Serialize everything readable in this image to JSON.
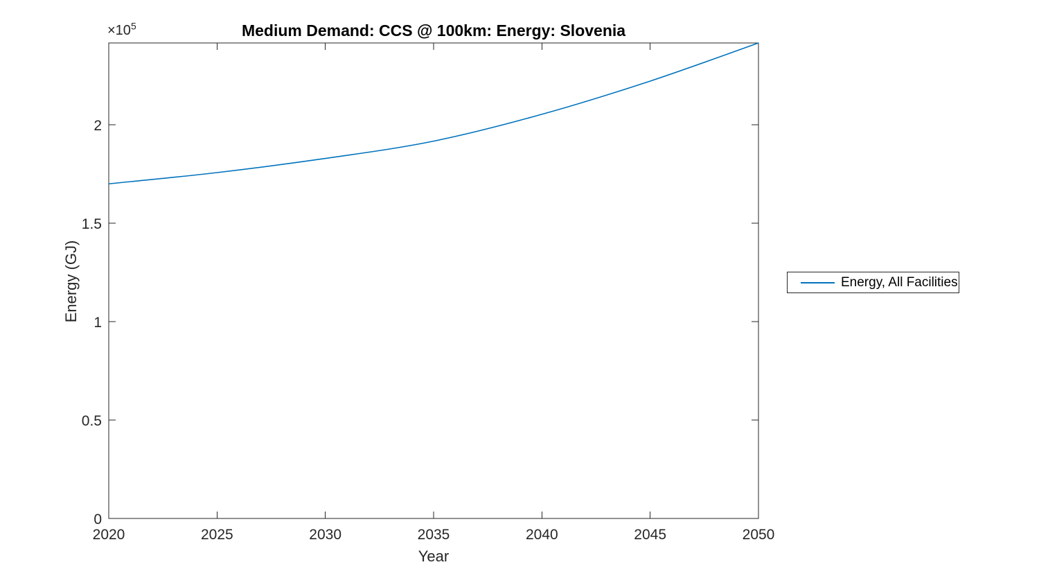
{
  "chart_data": {
    "type": "line",
    "title": "Medium Demand: CCS @ 100km: Energy: Slovenia",
    "xlabel": "Year",
    "ylabel": "Energy (GJ)",
    "y_axis_multiplier": {
      "base": "×10",
      "exponent": "5"
    },
    "xlim": [
      2020,
      2050
    ],
    "ylim": [
      0,
      241550
    ],
    "x_ticks": {
      "values": [
        2020,
        2025,
        2030,
        2035,
        2040,
        2045,
        2050
      ],
      "labels": [
        "2020",
        "2025",
        "2030",
        "2035",
        "2040",
        "2045",
        "2050"
      ]
    },
    "y_ticks": {
      "values": [
        0,
        50000,
        100000,
        150000,
        200000
      ],
      "labels": [
        "0",
        "0.5",
        "1",
        "1.5",
        "2"
      ]
    },
    "grid": false,
    "box": true,
    "axis_color": "#262626",
    "title_color": "#000000",
    "background": "#ffffff",
    "legend": {
      "position": "right-outside",
      "entries": [
        {
          "label": "Energy, All Facilities",
          "color": "#0072BD"
        }
      ]
    },
    "series": [
      {
        "name": "Energy, All Facilities",
        "color": "#0072BD",
        "x": [
          2020,
          2025,
          2030,
          2035,
          2040,
          2045,
          2050
        ],
        "y": [
          170000,
          175700,
          182900,
          191700,
          205300,
          222200,
          241550
        ]
      }
    ]
  }
}
